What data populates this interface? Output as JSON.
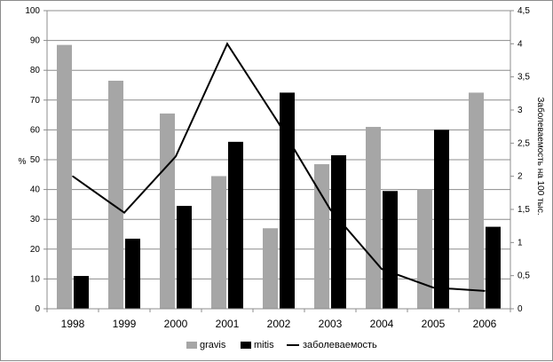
{
  "chart_data": {
    "type": "bar",
    "categories": [
      "1998",
      "1999",
      "2000",
      "2001",
      "2002",
      "2003",
      "2004",
      "2005",
      "2006"
    ],
    "series": [
      {
        "name": "gravis",
        "kind": "bar",
        "axis": "left",
        "color": "#a6a6a6",
        "values": [
          88.5,
          76.5,
          65.5,
          44.5,
          27,
          48.5,
          61,
          40,
          72.5
        ]
      },
      {
        "name": "mitis",
        "kind": "bar",
        "axis": "left",
        "color": "#000000",
        "values": [
          11,
          23.5,
          34.5,
          56,
          72.5,
          51.5,
          39.5,
          60,
          27.5
        ]
      },
      {
        "name": "заболеваемость",
        "kind": "line",
        "axis": "right",
        "color": "#000000",
        "values": [
          2.0,
          1.45,
          2.3,
          4.0,
          2.8,
          1.5,
          0.6,
          0.32,
          0.27
        ]
      }
    ],
    "ylabel": "%",
    "ylim": [
      0,
      100
    ],
    "yticks": [
      "0",
      "10",
      "20",
      "30",
      "40",
      "50",
      "60",
      "70",
      "80",
      "90",
      "100"
    ],
    "y2label": "Заболеваемость на 100 тыс.",
    "y2lim": [
      0,
      4.5
    ],
    "y2ticks": [
      "0",
      "0,5",
      "1",
      "1,5",
      "2",
      "2,5",
      "3",
      "3,5",
      "4",
      "4,5"
    ],
    "grid": true,
    "legend": "bottom"
  }
}
